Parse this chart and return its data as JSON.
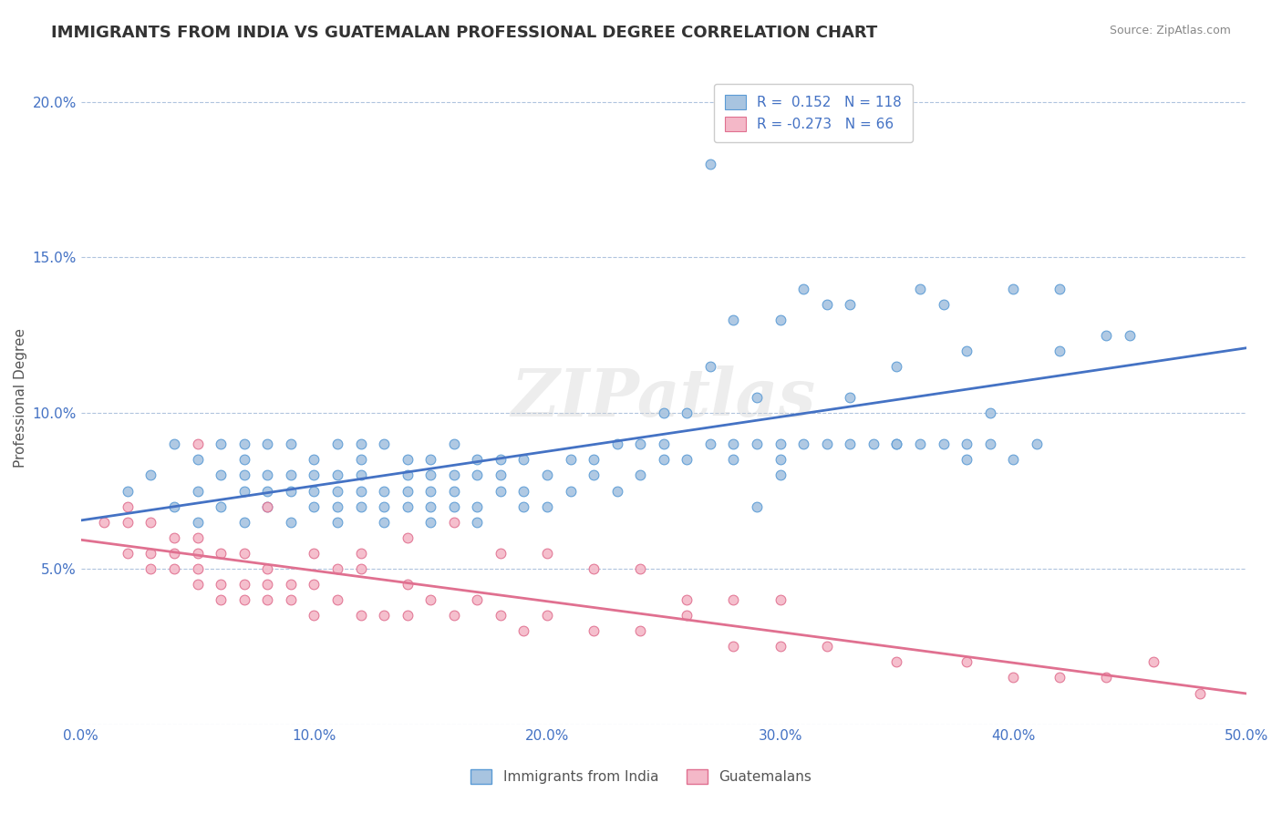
{
  "title": "IMMIGRANTS FROM INDIA VS GUATEMALAN PROFESSIONAL DEGREE CORRELATION CHART",
  "source": "Source: ZipAtlas.com",
  "xlabel": "",
  "ylabel": "Professional Degree",
  "xlim": [
    0.0,
    0.5
  ],
  "ylim": [
    0.0,
    0.21
  ],
  "xticks": [
    0.0,
    0.1,
    0.2,
    0.3,
    0.4,
    0.5
  ],
  "xticklabels": [
    "0.0%",
    "10.0%",
    "20.0%",
    "30.0%",
    "40.0%",
    "50.0%"
  ],
  "yticks": [
    0.0,
    0.05,
    0.1,
    0.15,
    0.2
  ],
  "yticklabels": [
    "",
    "5.0%",
    "10.0%",
    "15.0%",
    "20.0%"
  ],
  "india_color": "#a8c4e0",
  "india_edge_color": "#5b9bd5",
  "guatemala_color": "#f4b8c8",
  "guatemala_edge_color": "#e07090",
  "india_R": 0.152,
  "india_N": 118,
  "guatemala_R": -0.273,
  "guatemala_N": 66,
  "india_line_color": "#4472c4",
  "guatemala_line_color": "#e07090",
  "legend_R_color": "#4472c4",
  "watermark": "ZIPatlas",
  "background_color": "#ffffff",
  "grid_color": "#b0c4de",
  "title_fontsize": 13,
  "axis_label_fontsize": 11,
  "tick_fontsize": 11,
  "legend_fontsize": 11,
  "india_x": [
    0.02,
    0.03,
    0.04,
    0.04,
    0.05,
    0.05,
    0.05,
    0.06,
    0.06,
    0.06,
    0.07,
    0.07,
    0.07,
    0.07,
    0.07,
    0.08,
    0.08,
    0.08,
    0.08,
    0.09,
    0.09,
    0.09,
    0.09,
    0.1,
    0.1,
    0.1,
    0.1,
    0.11,
    0.11,
    0.11,
    0.11,
    0.11,
    0.12,
    0.12,
    0.12,
    0.12,
    0.12,
    0.13,
    0.13,
    0.13,
    0.13,
    0.14,
    0.14,
    0.14,
    0.14,
    0.15,
    0.15,
    0.15,
    0.15,
    0.15,
    0.16,
    0.16,
    0.16,
    0.16,
    0.17,
    0.17,
    0.17,
    0.17,
    0.18,
    0.18,
    0.18,
    0.19,
    0.19,
    0.19,
    0.2,
    0.2,
    0.21,
    0.21,
    0.22,
    0.22,
    0.23,
    0.23,
    0.24,
    0.24,
    0.25,
    0.25,
    0.26,
    0.27,
    0.28,
    0.28,
    0.29,
    0.3,
    0.3,
    0.31,
    0.32,
    0.33,
    0.34,
    0.35,
    0.36,
    0.37,
    0.38,
    0.39,
    0.4,
    0.41,
    0.25,
    0.27,
    0.35,
    0.38,
    0.42,
    0.44,
    0.45,
    0.28,
    0.3,
    0.32,
    0.33,
    0.37,
    0.4,
    0.42,
    0.29,
    0.3,
    0.35,
    0.38,
    0.27,
    0.31,
    0.36,
    0.39,
    0.26,
    0.29,
    0.33
  ],
  "india_y": [
    0.075,
    0.08,
    0.07,
    0.09,
    0.065,
    0.075,
    0.085,
    0.07,
    0.08,
    0.09,
    0.065,
    0.075,
    0.08,
    0.085,
    0.09,
    0.07,
    0.075,
    0.08,
    0.09,
    0.065,
    0.075,
    0.08,
    0.09,
    0.07,
    0.075,
    0.08,
    0.085,
    0.065,
    0.07,
    0.075,
    0.08,
    0.09,
    0.07,
    0.075,
    0.08,
    0.085,
    0.09,
    0.065,
    0.07,
    0.075,
    0.09,
    0.07,
    0.075,
    0.08,
    0.085,
    0.065,
    0.07,
    0.075,
    0.08,
    0.085,
    0.07,
    0.075,
    0.08,
    0.09,
    0.065,
    0.07,
    0.08,
    0.085,
    0.075,
    0.08,
    0.085,
    0.07,
    0.075,
    0.085,
    0.07,
    0.08,
    0.075,
    0.085,
    0.08,
    0.085,
    0.075,
    0.09,
    0.08,
    0.09,
    0.085,
    0.09,
    0.085,
    0.09,
    0.085,
    0.09,
    0.09,
    0.085,
    0.09,
    0.09,
    0.09,
    0.09,
    0.09,
    0.09,
    0.09,
    0.09,
    0.085,
    0.09,
    0.085,
    0.09,
    0.1,
    0.115,
    0.115,
    0.12,
    0.12,
    0.125,
    0.125,
    0.13,
    0.13,
    0.135,
    0.135,
    0.135,
    0.14,
    0.14,
    0.07,
    0.08,
    0.09,
    0.09,
    0.18,
    0.14,
    0.14,
    0.1,
    0.1,
    0.105,
    0.105
  ],
  "guatemala_x": [
    0.01,
    0.02,
    0.02,
    0.02,
    0.03,
    0.03,
    0.03,
    0.04,
    0.04,
    0.04,
    0.05,
    0.05,
    0.05,
    0.05,
    0.06,
    0.06,
    0.06,
    0.07,
    0.07,
    0.07,
    0.08,
    0.08,
    0.08,
    0.09,
    0.09,
    0.1,
    0.1,
    0.11,
    0.11,
    0.12,
    0.12,
    0.13,
    0.14,
    0.14,
    0.15,
    0.16,
    0.17,
    0.18,
    0.19,
    0.2,
    0.22,
    0.24,
    0.26,
    0.28,
    0.3,
    0.32,
    0.35,
    0.38,
    0.4,
    0.42,
    0.44,
    0.46,
    0.48,
    0.05,
    0.08,
    0.1,
    0.12,
    0.14,
    0.16,
    0.18,
    0.2,
    0.22,
    0.24,
    0.26,
    0.28,
    0.3
  ],
  "guatemala_y": [
    0.065,
    0.055,
    0.065,
    0.07,
    0.05,
    0.055,
    0.065,
    0.05,
    0.055,
    0.06,
    0.045,
    0.05,
    0.055,
    0.06,
    0.04,
    0.045,
    0.055,
    0.04,
    0.045,
    0.055,
    0.04,
    0.045,
    0.05,
    0.04,
    0.045,
    0.035,
    0.045,
    0.04,
    0.05,
    0.035,
    0.05,
    0.035,
    0.035,
    0.045,
    0.04,
    0.035,
    0.04,
    0.035,
    0.03,
    0.035,
    0.03,
    0.03,
    0.035,
    0.025,
    0.025,
    0.025,
    0.02,
    0.02,
    0.015,
    0.015,
    0.015,
    0.02,
    0.01,
    0.09,
    0.07,
    0.055,
    0.055,
    0.06,
    0.065,
    0.055,
    0.055,
    0.05,
    0.05,
    0.04,
    0.04,
    0.04
  ]
}
